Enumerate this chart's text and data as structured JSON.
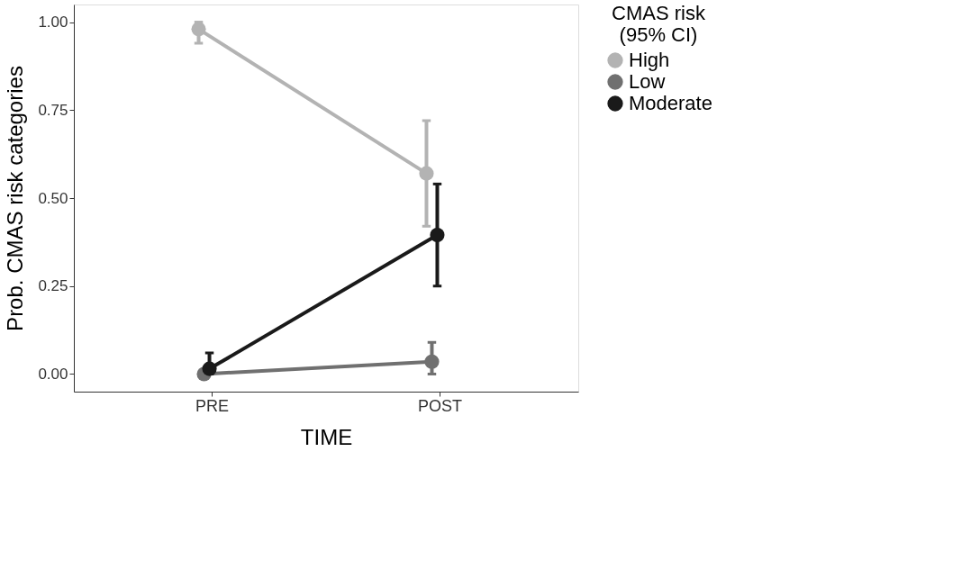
{
  "chart_data": {
    "type": "line",
    "xlabel": "TIME",
    "ylabel": "Prob. CMAS risk categories",
    "legend_title": "CMAS risk\n(95% CI)",
    "categories": [
      "PRE",
      "POST"
    ],
    "series": [
      {
        "name": "High",
        "color": "#b3b3b3",
        "values": [
          0.98,
          0.57
        ],
        "errors": [
          [
            0.94,
            1.0
          ],
          [
            0.42,
            0.72
          ]
        ]
      },
      {
        "name": "Low",
        "color": "#707070",
        "values": [
          0.0,
          0.035
        ],
        "errors": [
          null,
          [
            0.0,
            0.09
          ]
        ]
      },
      {
        "name": "Moderate",
        "color": "#1a1a1a",
        "values": [
          0.015,
          0.395
        ],
        "errors": [
          [
            0.0,
            0.06
          ],
          [
            0.25,
            0.54
          ]
        ]
      }
    ],
    "ylim": [
      -0.05,
      1.05
    ],
    "yticks": [
      {
        "value": 0,
        "label": "0.00"
      },
      {
        "value": 0.25,
        "label": "0.25"
      },
      {
        "value": 0.5,
        "label": "0.50"
      },
      {
        "value": 0.75,
        "label": "0.75"
      },
      {
        "value": 1,
        "label": "1.00"
      }
    ],
    "grid": false,
    "legend": "right",
    "marker": "circle",
    "line_style": "solid"
  }
}
